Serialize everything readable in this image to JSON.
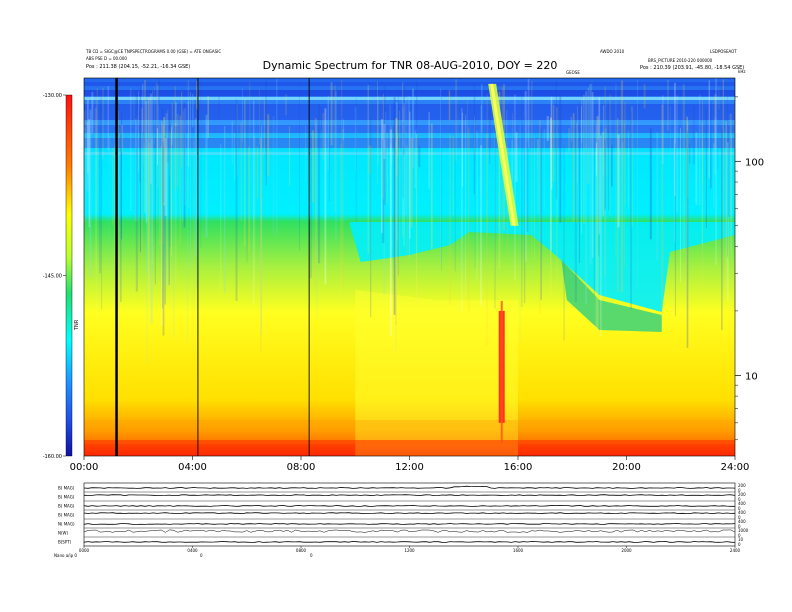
{
  "chart_data": {
    "type": "heatmap",
    "title": "Dynamic Spectrum for TNR 08-AUG-2010, DOY = 220",
    "header_left": [
      "TB CD = SIGC@CE TNPSPECTROGRAMS 0.00 (GSE) = ATE ONGASIC",
      "ABS PSE D = 00.000",
      "Pos : 211.38 (204.15, -52.21, -16.34 GSE)"
    ],
    "header_right": [
      "AWDO 2010",
      "LSDPOSEAOT",
      "BRS_PICTURE 2010-220  000000",
      "Pos : 210.39 (203.91, -45.80, -18.54 GSE)"
    ],
    "header_mid": "GEOSE",
    "xlabel": "",
    "ylabel_right": "kHz",
    "x_ticks": [
      "00:00",
      "04:00",
      "08:00",
      "12:00",
      "16:00",
      "20:00",
      "24:00"
    ],
    "xlim_hours": [
      0,
      24
    ],
    "y_scale": "log",
    "ylim_khz": [
      4.2,
      245
    ],
    "y_ticks": [
      "100",
      "10"
    ],
    "colorbar": {
      "label": "TNR",
      "ticks": [
        "-130.00",
        "-145.00",
        "-160.00"
      ],
      "range": [
        -160,
        -130
      ],
      "colors": [
        "#1010a0",
        "#1e50e8",
        "#00c8ff",
        "#00ffff",
        "#20e070",
        "#e8ff20",
        "#ffff00",
        "#ff8000",
        "#ff1010"
      ]
    },
    "vertical_markers_hours": [
      1.2,
      4.2,
      8.3
    ],
    "features": [
      {
        "name": "drifting-burst",
        "start_hour": 14.9,
        "end_hour": 15.8,
        "freq_khz_start": 230,
        "freq_khz_end": 50
      },
      {
        "name": "red-burst",
        "hour": 15.4,
        "freq_khz_low": 6,
        "freq_khz_high": 20
      }
    ],
    "panels": [
      {
        "label": "B( MAG)",
        "right_ticks": [
          "200",
          "0"
        ]
      },
      {
        "label": "B( MAG)",
        "right_ticks": [
          "200",
          "0"
        ]
      },
      {
        "label": "B( MAG)",
        "right_ticks": [
          "400",
          "0"
        ]
      },
      {
        "label": "B( MAG)",
        "right_ticks": [
          "400",
          "0"
        ]
      },
      {
        "label": "N( MAG)",
        "right_ticks": [
          "400",
          "0"
        ]
      },
      {
        "label": "N(W)",
        "right_ticks": [
          "1000",
          "0"
        ]
      },
      {
        "label": "B(SPT)",
        "right_ticks": [
          "10",
          "0"
        ]
      }
    ],
    "bottom_ticks": [
      "0000",
      "0400",
      "0800",
      "1200",
      "1600",
      "2000",
      "2400"
    ],
    "bottom_label": "Nano  a/ip 0",
    "bottom_small": [
      "0",
      "0"
    ]
  }
}
